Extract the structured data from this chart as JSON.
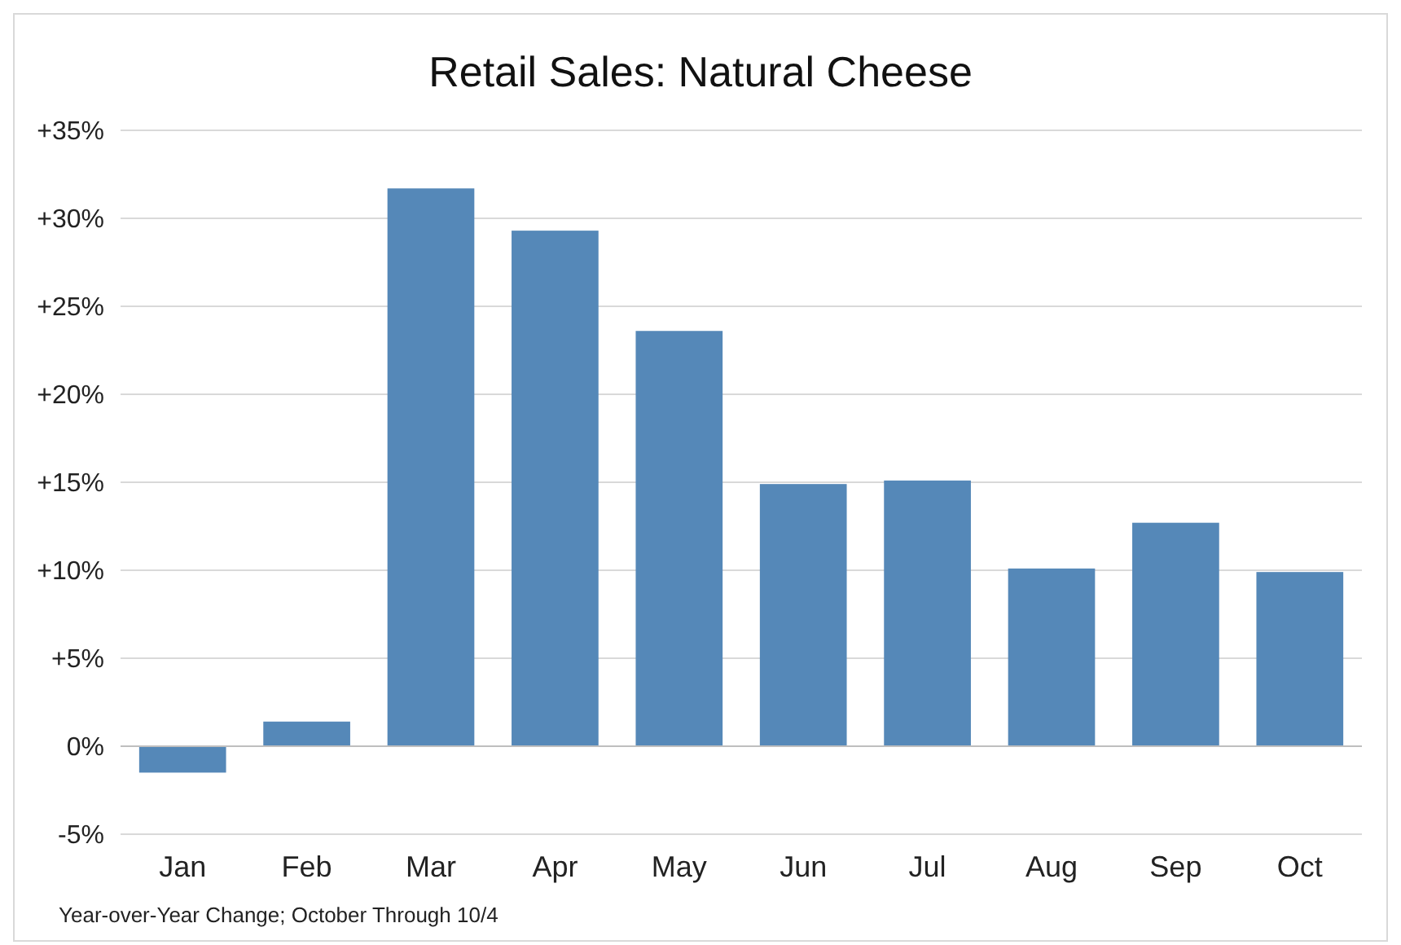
{
  "chart_data": {
    "type": "bar",
    "title": "Retail Sales: Natural Cheese",
    "categories": [
      "Jan",
      "Feb",
      "Mar",
      "Apr",
      "May",
      "Jun",
      "Jul",
      "Aug",
      "Sep",
      "Oct"
    ],
    "values": [
      -1.5,
      1.4,
      31.7,
      29.3,
      23.6,
      14.9,
      15.1,
      10.1,
      12.7,
      9.9
    ],
    "color": "#5588b8",
    "ylim": [
      -5,
      35
    ],
    "yticks": [
      {
        "value": -5,
        "label": "-5%"
      },
      {
        "value": 0,
        "label": "0%"
      },
      {
        "value": 5,
        "label": "+5%"
      },
      {
        "value": 10,
        "label": "+10%"
      },
      {
        "value": 15,
        "label": "+15%"
      },
      {
        "value": 20,
        "label": "+20%"
      },
      {
        "value": 25,
        "label": "+25%"
      },
      {
        "value": 30,
        "label": "+30%"
      },
      {
        "value": 35,
        "label": "+35%"
      }
    ],
    "grid": "y",
    "annotations": [
      "Year-over-Year Change; October Through 10/4"
    ]
  }
}
